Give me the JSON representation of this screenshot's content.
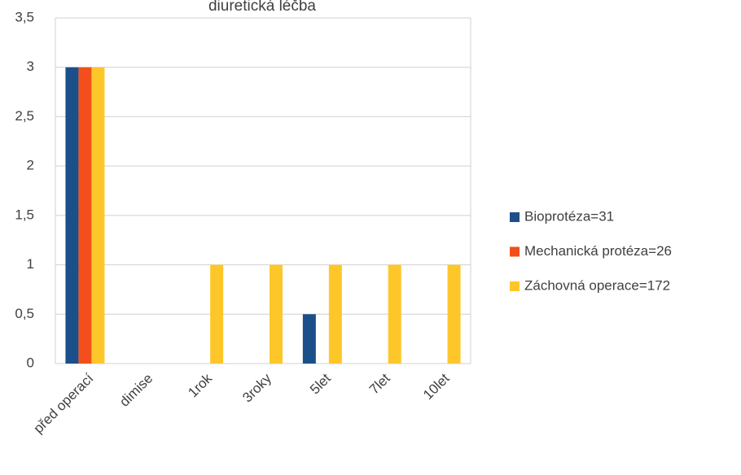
{
  "chart_data": {
    "type": "bar",
    "title": "diuretická léčba",
    "categories": [
      "před operací",
      "dimise",
      "1rok",
      "3roky",
      "5let",
      "7let",
      "10let"
    ],
    "series": [
      {
        "name": "Bioprotéza=31",
        "color": "#1b4f8a",
        "values": [
          3,
          0,
          0,
          0,
          0.5,
          0,
          0
        ]
      },
      {
        "name": "Mechanická protéza=26",
        "color": "#f24f1c",
        "values": [
          3,
          0,
          0,
          0,
          0,
          0,
          0
        ]
      },
      {
        "name": "Záchovná operace=172",
        "color": "#fdc72a",
        "values": [
          3,
          0,
          1,
          1,
          1,
          1,
          1
        ]
      }
    ],
    "ylim": [
      0,
      3.5
    ],
    "yticks": [
      0,
      {
        "value": 0.5,
        "label": "0,5"
      },
      1,
      {
        "value": 1.5,
        "label": "1,5"
      },
      2,
      {
        "value": 2.5,
        "label": "2,5"
      },
      3,
      {
        "value": 3.5,
        "label": "3,5"
      }
    ],
    "grid": true,
    "legend": "right"
  }
}
